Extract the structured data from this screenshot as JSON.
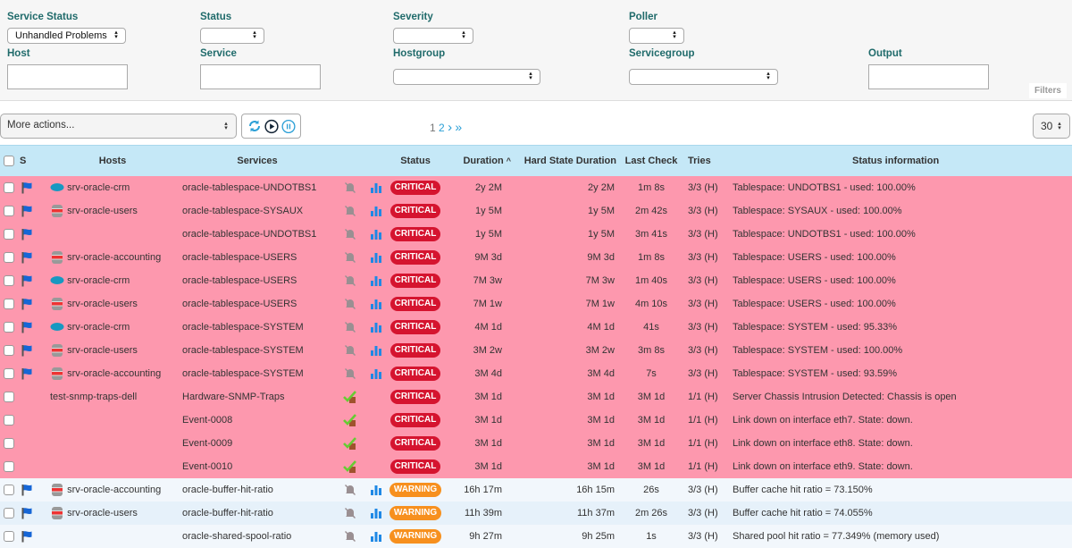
{
  "filters": {
    "service_status": {
      "label": "Service Status",
      "value": "Unhandled Problems"
    },
    "status": {
      "label": "Status",
      "value": ""
    },
    "severity": {
      "label": "Severity",
      "value": ""
    },
    "poller": {
      "label": "Poller",
      "value": ""
    },
    "host": {
      "label": "Host",
      "value": ""
    },
    "service": {
      "label": "Service",
      "value": ""
    },
    "hostgroup": {
      "label": "Hostgroup",
      "value": ""
    },
    "servicegroup": {
      "label": "Servicegroup",
      "value": ""
    },
    "output": {
      "label": "Output",
      "value": ""
    },
    "tab_label": "Filters"
  },
  "toolbar": {
    "more_actions": "More actions...",
    "pages": [
      "1",
      "2"
    ],
    "current_page": "1",
    "next": "›",
    "last": "»",
    "per_page": "30"
  },
  "colors": {
    "critical": "#d5142f",
    "warning": "#f7901e",
    "critical_row": "#fd98ae",
    "header": "#c5e8f7",
    "link": "#2a9fd6"
  },
  "table": {
    "columns": [
      "S",
      "Hosts",
      "Services",
      "Status",
      "Duration",
      "Hard State Duration",
      "Last Check",
      "Tries",
      "Status information"
    ],
    "sort_indicator": "^",
    "rows": [
      {
        "flag": true,
        "host_icon": "cloud",
        "host": "srv-oracle-crm",
        "service": "oracle-tablespace-UNDOTBS1",
        "svc_icons": "bell-graph",
        "status": "CRITICAL",
        "duration": "2y 2M",
        "hard": "2y 2M",
        "last": "1m 8s",
        "tries": "3/3 (H)",
        "info": "Tablespace: UNDOTBS1 - used: 100.00%"
      },
      {
        "flag": true,
        "host_icon": "database",
        "host": "srv-oracle-users",
        "service": "oracle-tablespace-SYSAUX",
        "svc_icons": "bell-graph",
        "status": "CRITICAL",
        "duration": "1y 5M",
        "hard": "1y 5M",
        "last": "2m 42s",
        "tries": "3/3 (H)",
        "info": "Tablespace: SYSAUX - used: 100.00%"
      },
      {
        "flag": true,
        "host_icon": "",
        "host": "",
        "service": "oracle-tablespace-UNDOTBS1",
        "svc_icons": "bell-graph",
        "status": "CRITICAL",
        "duration": "1y 5M",
        "hard": "1y 5M",
        "last": "3m 41s",
        "tries": "3/3 (H)",
        "info": "Tablespace: UNDOTBS1 - used: 100.00%"
      },
      {
        "flag": true,
        "host_icon": "database",
        "host": "srv-oracle-accounting",
        "service": "oracle-tablespace-USERS",
        "svc_icons": "bell-graph",
        "status": "CRITICAL",
        "duration": "9M 3d",
        "hard": "9M 3d",
        "last": "1m 8s",
        "tries": "3/3 (H)",
        "info": "Tablespace: USERS - used: 100.00%"
      },
      {
        "flag": true,
        "host_icon": "cloud",
        "host": "srv-oracle-crm",
        "service": "oracle-tablespace-USERS",
        "svc_icons": "bell-graph",
        "status": "CRITICAL",
        "duration": "7M 3w",
        "hard": "7M 3w",
        "last": "1m 40s",
        "tries": "3/3 (H)",
        "info": "Tablespace: USERS - used: 100.00%"
      },
      {
        "flag": true,
        "host_icon": "database",
        "host": "srv-oracle-users",
        "service": "oracle-tablespace-USERS",
        "svc_icons": "bell-graph",
        "status": "CRITICAL",
        "duration": "7M 1w",
        "hard": "7M 1w",
        "last": "4m 10s",
        "tries": "3/3 (H)",
        "info": "Tablespace: USERS - used: 100.00%"
      },
      {
        "flag": true,
        "host_icon": "cloud",
        "host": "srv-oracle-crm",
        "service": "oracle-tablespace-SYSTEM",
        "svc_icons": "bell-graph",
        "status": "CRITICAL",
        "duration": "4M 1d",
        "hard": "4M 1d",
        "last": "41s",
        "tries": "3/3 (H)",
        "info": "Tablespace: SYSTEM - used: 95.33%"
      },
      {
        "flag": true,
        "host_icon": "database",
        "host": "srv-oracle-users",
        "service": "oracle-tablespace-SYSTEM",
        "svc_icons": "bell-graph",
        "status": "CRITICAL",
        "duration": "3M 2w",
        "hard": "3M 2w",
        "last": "3m 8s",
        "tries": "3/3 (H)",
        "info": "Tablespace: SYSTEM - used: 100.00%"
      },
      {
        "flag": true,
        "host_icon": "database",
        "host": "srv-oracle-accounting",
        "service": "oracle-tablespace-SYSTEM",
        "svc_icons": "bell-graph",
        "status": "CRITICAL",
        "duration": "3M 4d",
        "hard": "3M 4d",
        "last": "7s",
        "tries": "3/3 (H)",
        "info": "Tablespace: SYSTEM - used: 93.59%"
      },
      {
        "flag": false,
        "host_icon": "",
        "host": "test-snmp-traps-dell",
        "service": "Hardware-SNMP-Traps",
        "svc_icons": "check",
        "status": "CRITICAL",
        "duration": "3M 1d",
        "hard": "3M 1d",
        "last": "3M 1d",
        "tries": "1/1 (H)",
        "info": "Server Chassis Intrusion Detected: Chassis is open"
      },
      {
        "flag": false,
        "host_icon": "",
        "host": "",
        "service": "Event-0008",
        "svc_icons": "check",
        "status": "CRITICAL",
        "duration": "3M 1d",
        "hard": "3M 1d",
        "last": "3M 1d",
        "tries": "1/1 (H)",
        "info": "Link down on interface eth7. State: down."
      },
      {
        "flag": false,
        "host_icon": "",
        "host": "",
        "service": "Event-0009",
        "svc_icons": "check",
        "status": "CRITICAL",
        "duration": "3M 1d",
        "hard": "3M 1d",
        "last": "3M 1d",
        "tries": "1/1 (H)",
        "info": "Link down on interface eth8. State: down."
      },
      {
        "flag": false,
        "host_icon": "",
        "host": "",
        "service": "Event-0010",
        "svc_icons": "check",
        "status": "CRITICAL",
        "duration": "3M 1d",
        "hard": "3M 1d",
        "last": "3M 1d",
        "tries": "1/1 (H)",
        "info": "Link down on interface eth9. State: down."
      },
      {
        "flag": true,
        "host_icon": "database",
        "host": "srv-oracle-accounting",
        "service": "oracle-buffer-hit-ratio",
        "svc_icons": "bell-graph",
        "status": "WARNING",
        "duration": "16h 17m",
        "hard": "16h 15m",
        "last": "26s",
        "tries": "3/3 (H)",
        "info": "Buffer cache hit ratio = 73.150%"
      },
      {
        "flag": true,
        "host_icon": "database",
        "host": "srv-oracle-users",
        "service": "oracle-buffer-hit-ratio",
        "svc_icons": "bell-graph",
        "status": "WARNING",
        "duration": "11h 39m",
        "hard": "11h 37m",
        "last": "2m 26s",
        "tries": "3/3 (H)",
        "info": "Buffer cache hit ratio = 74.055%"
      },
      {
        "flag": true,
        "host_icon": "",
        "host": "",
        "service": "oracle-shared-spool-ratio",
        "svc_icons": "bell-graph",
        "status": "WARNING",
        "duration": "9h 27m",
        "hard": "9h 25m",
        "last": "1s",
        "tries": "3/3 (H)",
        "info": "Shared pool hit ratio = 77.349% (memory used)"
      }
    ]
  }
}
